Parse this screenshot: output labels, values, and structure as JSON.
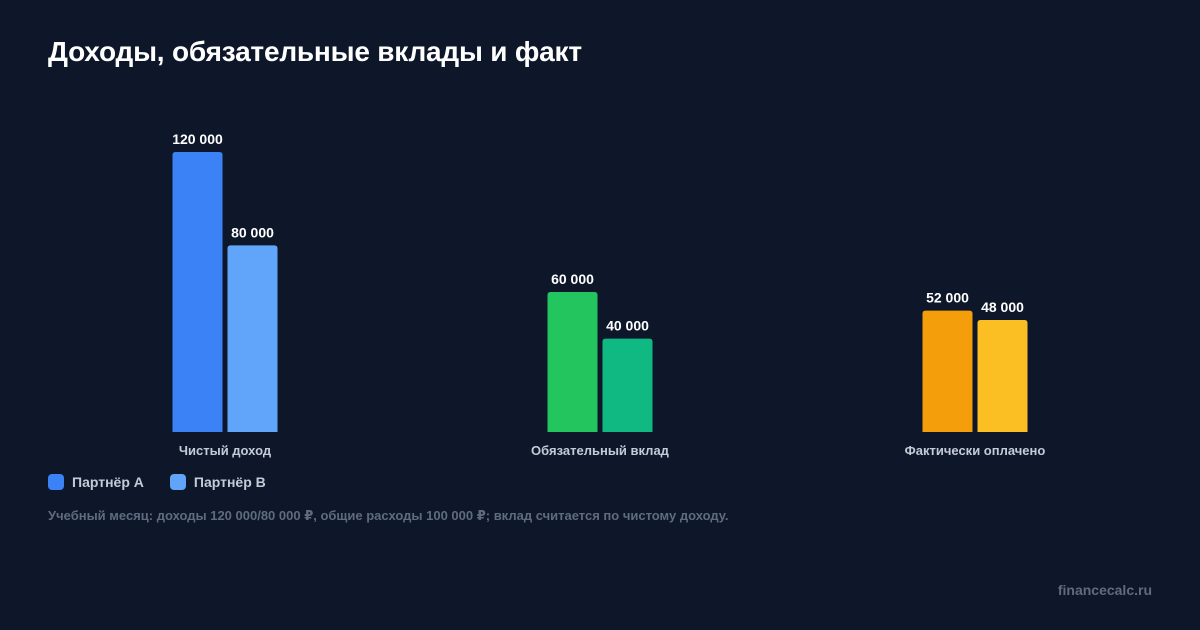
{
  "title": "Доходы, обязательные вклады и факт",
  "legend": [
    {
      "name": "Партнёр А",
      "color": "#3b82f6"
    },
    {
      "name": "Партнёр В",
      "color": "#60a5fa"
    }
  ],
  "note": "Учебный месяц: доходы 120 000/80 000 ₽, общие расходы 100 000 ₽; вклад считается по чистому доходу.",
  "brand": "financecalc.ru",
  "chart_data": {
    "type": "bar",
    "title": "Доходы, обязательные вклады и факт",
    "xlabel": "",
    "ylabel": "",
    "ylim": [
      0,
      120000
    ],
    "grid": false,
    "legend_position": "bottom-left",
    "categories": [
      "Чистый доход",
      "Обязательный вклад",
      "Фактически оплачено"
    ],
    "series": [
      {
        "name": "Партнёр А",
        "values": [
          120000,
          60000,
          52000
        ],
        "labels": [
          "120 000",
          "60 000",
          "52 000"
        ]
      },
      {
        "name": "Партнёр В",
        "values": [
          80000,
          40000,
          48000
        ],
        "labels": [
          "80 000",
          "40 000",
          "48 000"
        ]
      }
    ],
    "bar_colors": [
      [
        "#3b82f6",
        "#60a5fa"
      ],
      [
        "#22c55e",
        "#10b981"
      ],
      [
        "#f59e0b",
        "#fbbf24"
      ]
    ]
  }
}
